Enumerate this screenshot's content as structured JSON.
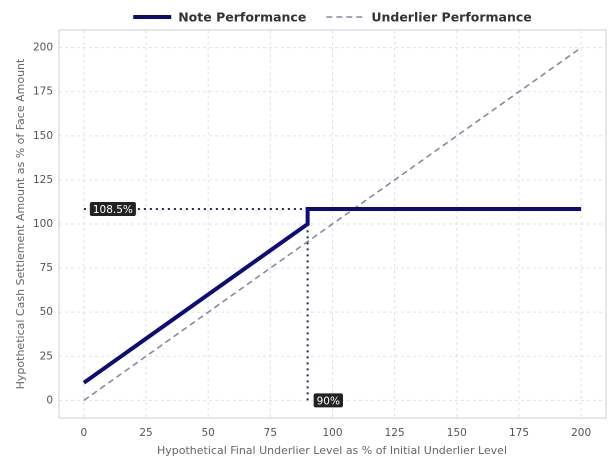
{
  "chart_data": {
    "type": "line",
    "x_label": "Hypothetical Final Underlier Level as % of Initial Underlier Level",
    "y_label": "Hypothetical Cash Settlement Amount as % of Face Amount",
    "xlim": [
      -10,
      210
    ],
    "ylim": [
      -10,
      210
    ],
    "xticks": [
      0,
      25,
      50,
      75,
      100,
      125,
      150,
      175,
      200
    ],
    "yticks": [
      0,
      25,
      50,
      75,
      100,
      125,
      150,
      175,
      200
    ],
    "grid": true,
    "legend": "top",
    "series": [
      {
        "name": "Note Performance",
        "color": "#0b0b7a",
        "dash": "solid",
        "width": 4,
        "x": [
          0,
          90,
          90,
          200
        ],
        "values": [
          10,
          100,
          108.5,
          108.5
        ]
      },
      {
        "name": "Underlier Performance",
        "color": "#8a8a9c",
        "dash": "dashed",
        "width": 1.6,
        "x": [
          0,
          200
        ],
        "values": [
          0,
          200
        ]
      }
    ],
    "reference_lines": [
      {
        "color": "#1e2a4a",
        "x": [
          0,
          90
        ],
        "values": [
          108.5,
          108.5
        ]
      },
      {
        "color": "#1e2a4a",
        "x": [
          90,
          90
        ],
        "values": [
          0,
          108.5
        ]
      }
    ],
    "annotations": [
      {
        "text": "108.5%",
        "x": 0,
        "y": 108.5
      },
      {
        "text": "90%",
        "x": 90,
        "y": 0
      }
    ]
  }
}
